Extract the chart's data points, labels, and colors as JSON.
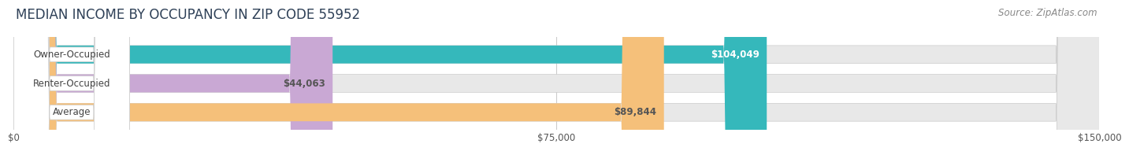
{
  "title": "MEDIAN INCOME BY OCCUPANCY IN ZIP CODE 55952",
  "source": "Source: ZipAtlas.com",
  "categories": [
    "Owner-Occupied",
    "Renter-Occupied",
    "Average"
  ],
  "values": [
    104049,
    44063,
    89844
  ],
  "bar_colors": [
    "#35b8bb",
    "#c9a8d4",
    "#f5c07a"
  ],
  "bar_labels": [
    "$104,049",
    "$44,063",
    "$89,844"
  ],
  "label_text_colors": [
    "white",
    "#555555",
    "#555555"
  ],
  "xlim": [
    0,
    150000
  ],
  "xticks": [
    0,
    75000,
    150000
  ],
  "xtick_labels": [
    "$0",
    "$75,000",
    "$150,000"
  ],
  "background_color": "#ffffff",
  "bar_bg_color": "#e8e8e8",
  "bar_bg_color2": "#f2f2f2",
  "title_fontsize": 12,
  "label_fontsize": 8.5,
  "source_fontsize": 8.5,
  "bar_height": 0.62,
  "cat_label_bg": "#ffffff"
}
